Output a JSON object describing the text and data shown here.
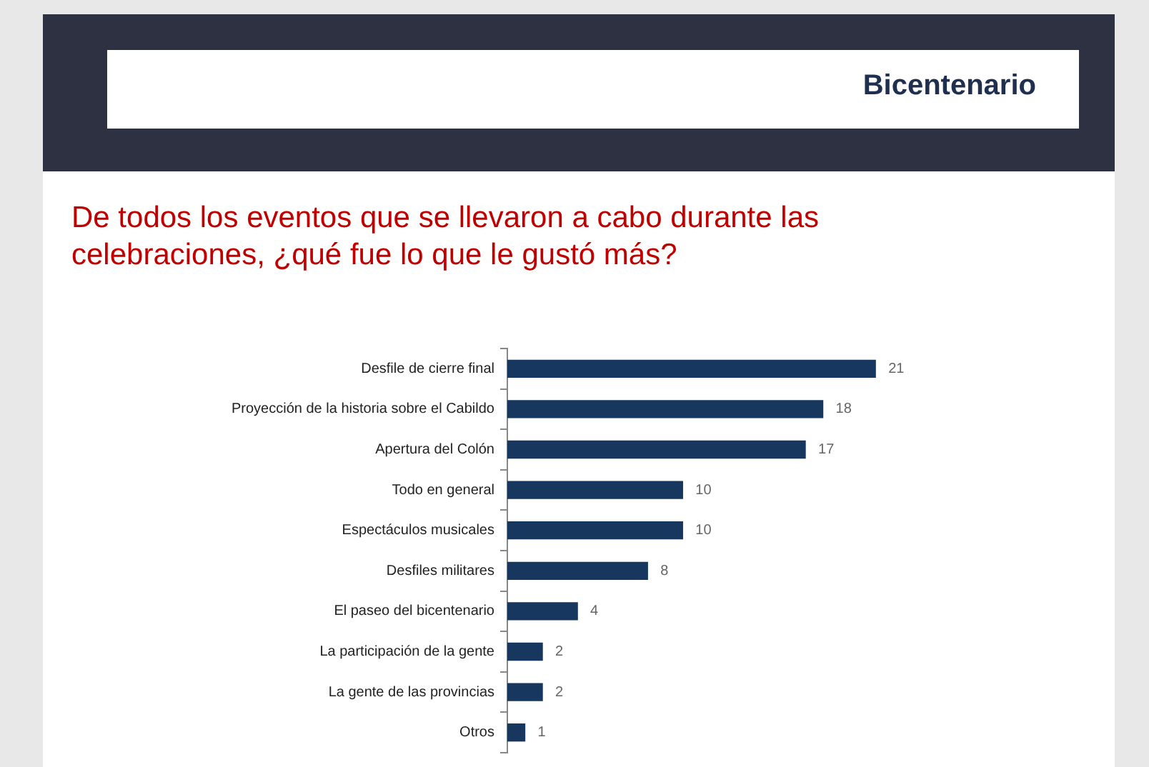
{
  "chart_data": {
    "type": "bar",
    "orientation": "horizontal",
    "subtitle": "Bicentenario",
    "title": "De todos los eventos que se llevaron a cabo durante las celebraciones, ¿qué fue lo que le gustó más?",
    "categories": [
      "Desfile de cierre final",
      "Proyección de la historia sobre el Cabildo",
      "Apertura del Colón",
      "Todo en general",
      "Espectáculos musicales",
      "Desfiles militares",
      "El paseo del bicentenario",
      "La participación de la gente",
      "La gente de las provincias",
      "Otros"
    ],
    "values": [
      21,
      18,
      17,
      10,
      10,
      8,
      4,
      2,
      2,
      1
    ],
    "color": "#17375e",
    "data_labels": true
  }
}
